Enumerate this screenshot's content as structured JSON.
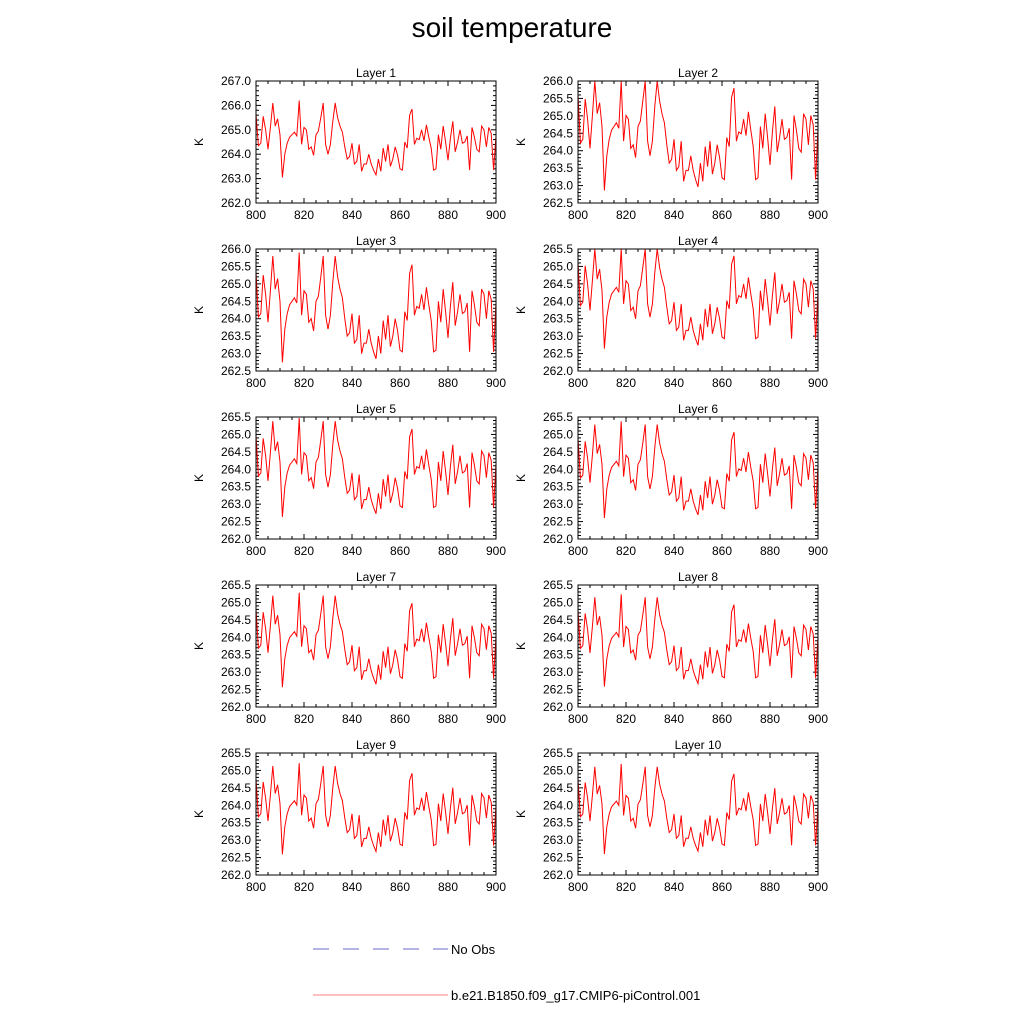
{
  "title": "soil temperature",
  "ylabel": "K",
  "x_ticks": [
    800,
    820,
    840,
    860,
    880,
    900
  ],
  "xlim": [
    800,
    900
  ],
  "x": [
    800,
    801,
    802,
    803,
    804,
    805,
    806,
    807,
    808,
    809,
    810,
    811,
    812,
    813,
    814,
    815,
    816,
    817,
    818,
    819,
    820,
    821,
    822,
    823,
    824,
    825,
    826,
    827,
    828,
    829,
    830,
    831,
    832,
    833,
    834,
    835,
    836,
    837,
    838,
    839,
    840,
    841,
    842,
    843,
    844,
    845,
    846,
    847,
    848,
    849,
    850,
    851,
    852,
    853,
    854,
    855,
    856,
    857,
    858,
    859,
    860,
    861,
    862,
    863,
    864,
    865,
    866,
    867,
    868,
    869,
    870,
    871,
    872,
    873,
    874,
    875,
    876,
    877,
    878,
    879,
    880,
    881,
    882,
    883,
    884,
    885,
    886,
    887,
    888,
    889,
    890,
    891,
    892,
    893,
    894,
    895,
    896,
    897,
    898,
    899,
    900
  ],
  "base_series": [
    1.75,
    0.45,
    0.55,
    1.65,
    1.1,
    0.3,
    1.2,
    2.2,
    1.25,
    1.55,
    0.9,
    -0.85,
    0.1,
    0.55,
    0.8,
    0.9,
    1.0,
    0.85,
    2.3,
    0.5,
    1.2,
    1.1,
    0.3,
    0.4,
    0.05,
    0.9,
    1.05,
    1.6,
    2.2,
    0.5,
    0.1,
    0.5,
    1.45,
    2.2,
    1.6,
    1.25,
    1.0,
    0.4,
    -0.1,
    0.0,
    0.55,
    -0.3,
    -0.2,
    0.5,
    -0.6,
    -0.3,
    -0.3,
    0.1,
    -0.3,
    -0.55,
    -0.75,
    -0.1,
    -0.6,
    0.35,
    -0.2,
    0.5,
    -0.4,
    -0.1,
    0.4,
    0.05,
    -0.5,
    -0.55,
    0.6,
    0.35,
    1.7,
    1.95,
    0.5,
    0.75,
    0.7,
    1.1,
    0.65,
    1.3,
    0.8,
    0.35,
    -0.55,
    -0.5,
    0.9,
    0.3,
    1.25,
    0.6,
    -0.15,
    0.75,
    1.45,
    0.2,
    0.6,
    1.1,
    0.55,
    0.6,
    0.85,
    -0.55,
    1.2,
    0.8,
    0.3,
    0.2,
    1.25,
    1.1,
    0.4,
    1.2,
    0.95,
    -0.55,
    0.85
  ],
  "layers": [
    {
      "title": "Layer 1",
      "ylim": [
        262.0,
        267.0
      ],
      "yticks": [
        "262.0",
        "263.0",
        "264.0",
        "265.0",
        "266.0",
        "267.0"
      ],
      "mean": 263.9,
      "scale": 1.0
    },
    {
      "title": "Layer 2",
      "ylim": [
        262.5,
        266.0
      ],
      "yticks": [
        "262.5",
        "263.0",
        "263.5",
        "264.0",
        "264.5",
        "265.0",
        "265.5",
        "266.0"
      ],
      "mean": 263.75,
      "scale": 1.05
    },
    {
      "title": "Layer 3",
      "ylim": [
        262.5,
        266.0
      ],
      "yticks": [
        "262.5",
        "263.0",
        "263.5",
        "264.0",
        "264.5",
        "265.0",
        "265.5",
        "266.0"
      ],
      "mean": 263.6,
      "scale": 1.0
    },
    {
      "title": "Layer 4",
      "ylim": [
        262.0,
        265.5
      ],
      "yticks": [
        "262.0",
        "262.5",
        "263.0",
        "263.5",
        "264.0",
        "264.5",
        "265.0",
        "265.5"
      ],
      "mean": 263.45,
      "scale": 0.95
    },
    {
      "title": "Layer 5",
      "ylim": [
        262.0,
        265.5
      ],
      "yticks": [
        "262.0",
        "262.5",
        "263.0",
        "263.5",
        "264.0",
        "264.5",
        "265.0",
        "265.5"
      ],
      "mean": 263.4,
      "scale": 0.9
    },
    {
      "title": "Layer 6",
      "ylim": [
        262.0,
        265.5
      ],
      "yticks": [
        "262.0",
        "262.5",
        "263.0",
        "263.5",
        "264.0",
        "264.5",
        "265.0",
        "265.5"
      ],
      "mean": 263.35,
      "scale": 0.88
    },
    {
      "title": "Layer 7",
      "ylim": [
        262.0,
        265.5
      ],
      "yticks": [
        "262.0",
        "262.5",
        "263.0",
        "263.5",
        "264.0",
        "264.5",
        "265.0",
        "265.5"
      ],
      "mean": 263.3,
      "scale": 0.86
    },
    {
      "title": "Layer 8",
      "ylim": [
        262.0,
        265.5
      ],
      "yticks": [
        "262.0",
        "262.5",
        "263.0",
        "263.5",
        "264.0",
        "264.5",
        "265.0",
        "265.5"
      ],
      "mean": 263.3,
      "scale": 0.84
    },
    {
      "title": "Layer 9",
      "ylim": [
        262.0,
        265.5
      ],
      "yticks": [
        "262.0",
        "262.5",
        "263.0",
        "263.5",
        "264.0",
        "264.5",
        "265.0",
        "265.5"
      ],
      "mean": 263.3,
      "scale": 0.83
    },
    {
      "title": "Layer 10",
      "ylim": [
        262.0,
        265.5
      ],
      "yticks": [
        "262.0",
        "262.5",
        "263.0",
        "263.5",
        "264.0",
        "264.5",
        "265.0",
        "265.5"
      ],
      "mean": 263.3,
      "scale": 0.82
    }
  ],
  "legend": [
    {
      "label": "No Obs",
      "color": "#6a6acd",
      "style": "dashed"
    },
    {
      "label": "b.e21.B1850.f09_g17.CMIP6-piControl.001",
      "color": "#ff0000",
      "style": "solid"
    }
  ],
  "chart_data": {
    "type": "line",
    "title": "soil temperature",
    "ylabel": "K",
    "xlim": [
      800,
      900
    ],
    "panels": [
      "Layer 1",
      "Layer 2",
      "Layer 3",
      "Layer 4",
      "Layer 5",
      "Layer 6",
      "Layer 7",
      "Layer 8",
      "Layer 9",
      "Layer 10"
    ],
    "series_name": "b.e21.B1850.f09_g17.CMIP6-piControl.001",
    "series_color": "#ff0000",
    "note": "Each panel value = mean + scale * base_series[i]"
  }
}
